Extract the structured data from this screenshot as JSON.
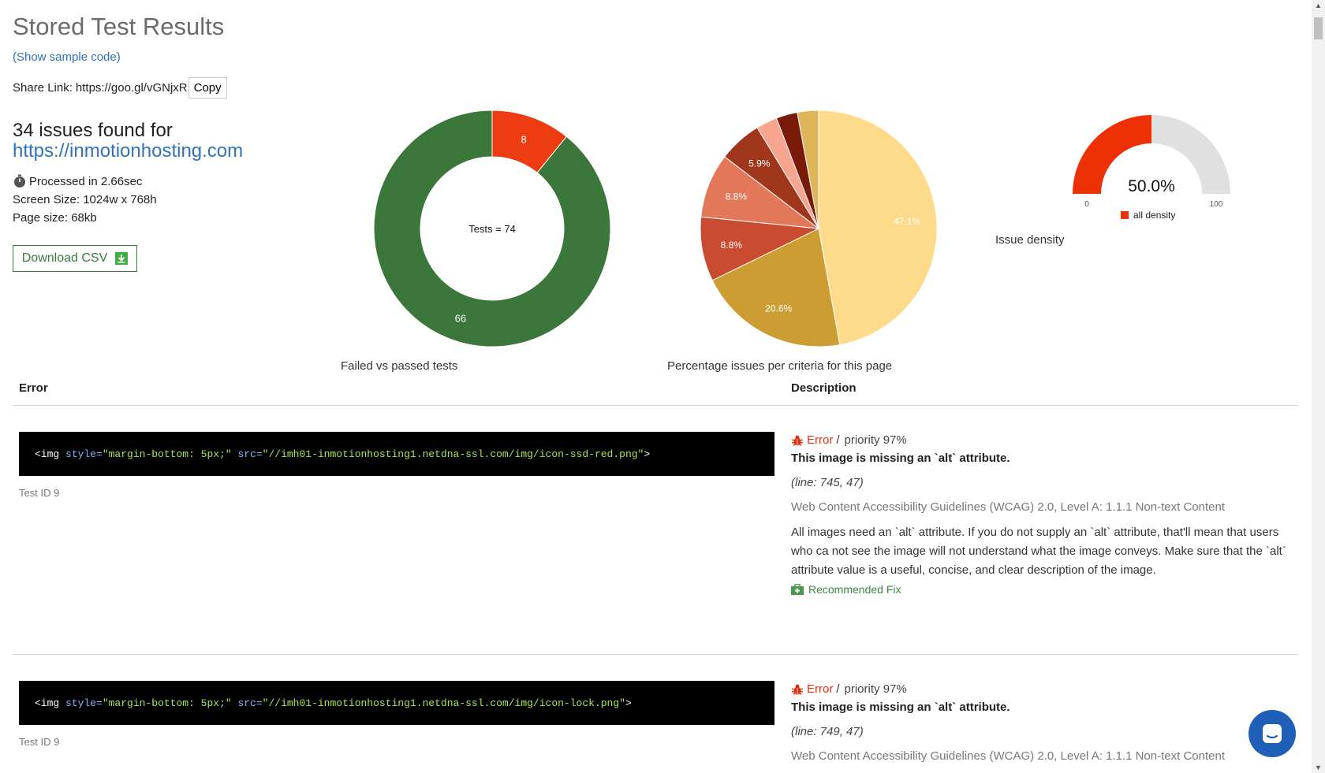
{
  "page": {
    "title": "Stored Test Results",
    "sample_code_link": "(Show sample code)",
    "share_label": "Share Link:",
    "share_url": "https://goo.gl/vGNjxR",
    "copy_label": "Copy"
  },
  "summary": {
    "issues_line": "34 issues found for",
    "site_url": "https://inmotionhosting.com",
    "processed": "Processed in 2.66sec",
    "screen_size": "Screen Size: 1024w x 768h",
    "page_size": "Page size: 68kb",
    "download_label": "Download CSV"
  },
  "chart_data": [
    {
      "type": "pie",
      "variant": "donut",
      "title": "Failed vs passed tests",
      "center_label": "Tests = 74",
      "slices": [
        {
          "label": "failed",
          "value": 8,
          "color": "#ee3c12"
        },
        {
          "label": "passed",
          "value": 66,
          "color": "#3b763a"
        }
      ]
    },
    {
      "type": "pie",
      "title": "Percentage issues per criteria for this page",
      "slices": [
        {
          "value": 47.1,
          "label": "47.1%",
          "color": "#fedb8b"
        },
        {
          "value": 20.6,
          "label": "20.6%",
          "color": "#cb9d33"
        },
        {
          "value": 8.8,
          "label": "8.8%",
          "color": "#ca4c30"
        },
        {
          "value": 8.8,
          "label": "8.8%",
          "color": "#e2775a"
        },
        {
          "value": 5.9,
          "label": "5.9%",
          "color": "#a0361c"
        },
        {
          "value": 2.9,
          "label": "",
          "color": "#f7a58f"
        },
        {
          "value": 2.9,
          "label": "",
          "color": "#7a1a08"
        },
        {
          "value": 2.9,
          "label": "",
          "color": "#e0b65a"
        }
      ]
    },
    {
      "type": "gauge",
      "title": "Issue density",
      "value": 50.0,
      "value_label": "50.0%",
      "min": 0,
      "max": 100,
      "min_label": "0",
      "max_label": "100",
      "legend": "all density",
      "color": "#ee3005",
      "track_color": "#e0e0e0"
    }
  ],
  "table": {
    "col_error": "Error",
    "col_description": "Description",
    "rows": [
      {
        "code_open": "<img ",
        "code_attr1": "style=",
        "code_val1": "\"margin-bottom: 5px;\"",
        "code_attr2": " src=",
        "code_val2": "\"//imh01-inmotionhosting1.netdna-ssl.com/img/icon-ssd-red.png\"",
        "code_close": ">",
        "test_id": "Test ID 9",
        "severity": "Error",
        "priority": "priority 97%",
        "message": "This image is missing an `alt` attribute.",
        "line": "(line: 745, 47)",
        "guideline": "Web Content Accessibility Guidelines (WCAG) 2.0, Level A: 1.1.1 Non-text Content",
        "body": "All images need an `alt` attribute. If you do not supply an `alt` attribute, that'll mean that users who ca not see the image will not understand what the image conveys. Make sure that the `alt` attribute value is a useful, concise, and clear description of the image.",
        "fix": "Recommended Fix"
      },
      {
        "code_open": "<img ",
        "code_attr1": "style=",
        "code_val1": "\"margin-bottom: 5px;\"",
        "code_attr2": " src=",
        "code_val2": "\"//imh01-inmotionhosting1.netdna-ssl.com/img/icon-lock.png\"",
        "code_close": ">",
        "test_id": "Test ID 9",
        "severity": "Error",
        "priority": "priority 97%",
        "message": "This image is missing an `alt` attribute.",
        "line": "(line: 749, 47)",
        "guideline": "Web Content Accessibility Guidelines (WCAG) 2.0, Level A: 1.1.1 Non-text Content"
      }
    ]
  }
}
